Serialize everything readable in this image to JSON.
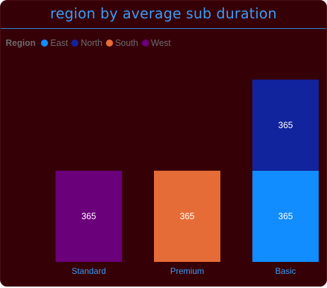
{
  "title": "region by average sub duration",
  "legend_title": "Region",
  "colors": {
    "East": "#118dff",
    "North": "#12239e",
    "South": "#e66c37",
    "West": "#6b007b",
    "title": "#3a9cf5",
    "axis_label": "#3a9cf5",
    "background": "#360007"
  },
  "chart_data": {
    "type": "bar",
    "stacked": true,
    "categories": [
      "Standard",
      "Premium",
      "Basic"
    ],
    "series": [
      {
        "name": "East",
        "values": [
          null,
          null,
          365
        ]
      },
      {
        "name": "North",
        "values": [
          null,
          null,
          365
        ]
      },
      {
        "name": "South",
        "values": [
          null,
          365,
          null
        ]
      },
      {
        "name": "West",
        "values": [
          365,
          null,
          null
        ]
      }
    ],
    "ylim": [
      0,
      780
    ],
    "grid": false,
    "legend_position": "top-left",
    "data_labels": true
  }
}
